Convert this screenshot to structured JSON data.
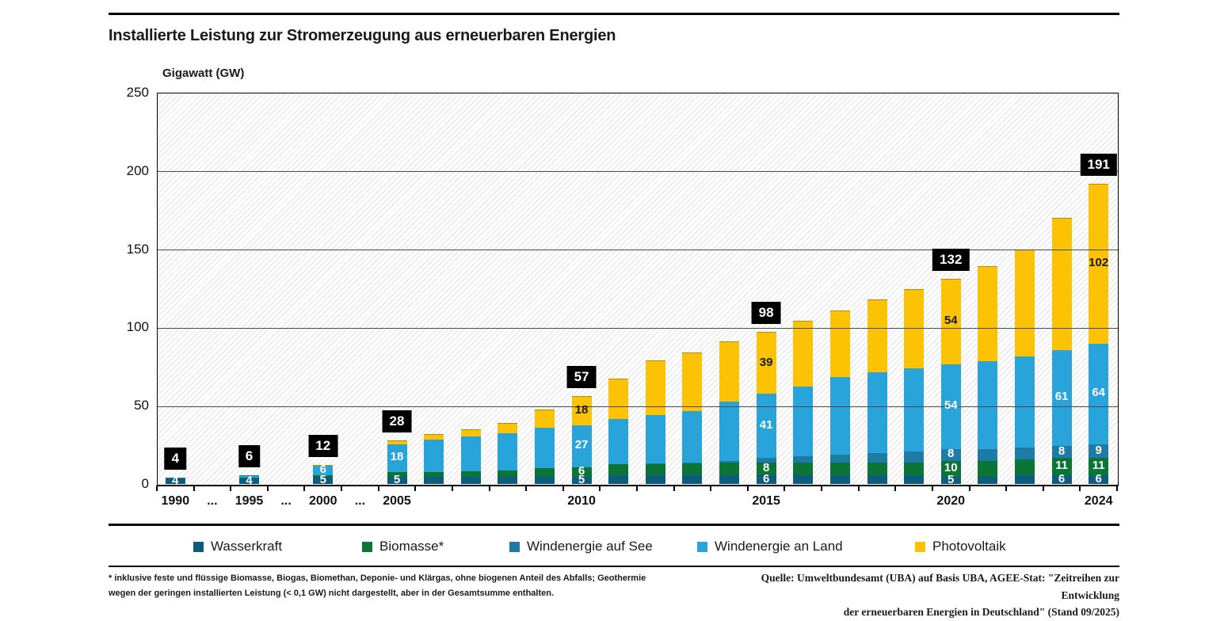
{
  "header": {
    "title": "Installierte Leistung zur Stromerzeugung aus erneuerbaren Energien"
  },
  "chart_data": {
    "type": "bar",
    "stacked": true,
    "title": "Installierte Leistung zur Stromerzeugung aus erneuerbaren Energien",
    "ylabel": "Gigawatt (GW)",
    "ylim": [
      0,
      250
    ],
    "yticks": [
      0,
      50,
      100,
      150,
      200,
      250
    ],
    "grid": "horizontal",
    "hatch_background": true,
    "x_slots": 26,
    "x_tick_labels": [
      {
        "slot": 0,
        "label": "1990"
      },
      {
        "slot": 1,
        "label": "..."
      },
      {
        "slot": 2,
        "label": "1995"
      },
      {
        "slot": 3,
        "label": "..."
      },
      {
        "slot": 4,
        "label": "2000"
      },
      {
        "slot": 5,
        "label": "..."
      },
      {
        "slot": 6,
        "label": "2005"
      },
      {
        "slot": 11,
        "label": "2010"
      },
      {
        "slot": 16,
        "label": "2015"
      },
      {
        "slot": 21,
        "label": "2020"
      },
      {
        "slot": 25,
        "label": "2024"
      }
    ],
    "series": [
      {
        "key": "wasserkraft",
        "name": "Wasserkraft",
        "color": "#0b5c7d",
        "label_color": "#ffffff"
      },
      {
        "key": "biomasse",
        "name": "Biomasse*",
        "color": "#0b7437",
        "label_color": "#ffffff"
      },
      {
        "key": "wind_see",
        "name": "Windenergie auf See",
        "color": "#1d7ba6",
        "label_color": "#ffffff"
      },
      {
        "key": "wind_land",
        "name": "Windenergie an Land",
        "color": "#29a4da",
        "label_color": "#ffffff"
      },
      {
        "key": "photovoltaik",
        "name": "Photovoltaik",
        "color": "#fcc305",
        "label_color": "#1a1a1a"
      }
    ],
    "bars": [
      {
        "year": "1990",
        "slot": 0,
        "values": [
          4,
          0.2,
          0,
          0.1,
          0
        ],
        "total_label": "4",
        "segment_labels": [
          "4",
          null,
          null,
          null,
          null
        ]
      },
      {
        "year": "1995",
        "slot": 2,
        "values": [
          4,
          0.6,
          0,
          1.1,
          0
        ],
        "total_label": "6",
        "segment_labels": [
          "4",
          null,
          null,
          null,
          null
        ]
      },
      {
        "year": "2000",
        "slot": 4,
        "values": [
          5,
          1,
          0,
          6,
          0.1
        ],
        "total_label": "12",
        "segment_labels": [
          "5",
          null,
          null,
          "6",
          null
        ]
      },
      {
        "year": "2005",
        "slot": 6,
        "values": [
          5,
          3,
          0,
          18,
          2
        ],
        "total_label": "28",
        "segment_labels": [
          "5",
          null,
          null,
          "18",
          null
        ]
      },
      {
        "year": "2006",
        "slot": 7,
        "values": [
          5,
          3.2,
          0,
          20.6,
          3
        ]
      },
      {
        "year": "2007",
        "slot": 8,
        "values": [
          5,
          3.7,
          0,
          22.2,
          4.2
        ]
      },
      {
        "year": "2008",
        "slot": 9,
        "values": [
          5,
          4.1,
          0,
          23.9,
          6.1
        ]
      },
      {
        "year": "2009",
        "slot": 10,
        "values": [
          5,
          5.4,
          0,
          26,
          11
        ]
      },
      {
        "year": "2010",
        "slot": 11,
        "values": [
          5,
          6,
          0.1,
          27,
          18
        ],
        "total_label": "57",
        "segment_labels": [
          "5",
          "6",
          null,
          "27",
          "18"
        ]
      },
      {
        "year": "2011",
        "slot": 12,
        "values": [
          6,
          7,
          0.2,
          29,
          25
        ]
      },
      {
        "year": "2012",
        "slot": 13,
        "values": [
          6,
          7.4,
          0.3,
          31,
          34
        ]
      },
      {
        "year": "2013",
        "slot": 14,
        "values": [
          6,
          7.6,
          0.5,
          33,
          37
        ]
      },
      {
        "year": "2014",
        "slot": 15,
        "values": [
          6,
          8,
          1,
          38,
          38
        ]
      },
      {
        "year": "2015",
        "slot": 16,
        "values": [
          6,
          8,
          3,
          41,
          39
        ],
        "total_label": "98",
        "segment_labels": [
          "6",
          "8",
          null,
          "41",
          "39"
        ]
      },
      {
        "year": "2016",
        "slot": 17,
        "values": [
          6,
          8,
          4,
          45,
          41
        ]
      },
      {
        "year": "2017",
        "slot": 18,
        "values": [
          6,
          8,
          5,
          50,
          42
        ]
      },
      {
        "year": "2018",
        "slot": 19,
        "values": [
          6,
          8,
          6,
          52,
          46
        ]
      },
      {
        "year": "2019",
        "slot": 20,
        "values": [
          6,
          8,
          7.5,
          53,
          50
        ]
      },
      {
        "year": "2020",
        "slot": 21,
        "values": [
          5,
          10,
          8,
          54,
          54
        ],
        "total_label": "132",
        "segment_labels": [
          "5",
          "10",
          "8",
          "54",
          "54"
        ]
      },
      {
        "year": "2021",
        "slot": 22,
        "values": [
          5,
          10,
          8,
          56,
          60
        ]
      },
      {
        "year": "2022",
        "slot": 23,
        "values": [
          6,
          10,
          8,
          58,
          68
        ]
      },
      {
        "year": "2023",
        "slot": 24,
        "values": [
          6,
          11,
          8,
          61,
          84
        ],
        "segment_labels": [
          "6",
          "11",
          "8",
          "61",
          null
        ]
      },
      {
        "year": "2024",
        "slot": 25,
        "values": [
          6,
          11,
          9,
          64,
          102
        ],
        "total_label": "191",
        "segment_labels": [
          "6",
          "11",
          "9",
          "64",
          "102"
        ]
      }
    ]
  },
  "footnote": {
    "line1": "* inklusive feste und flüssige Biomasse, Biogas, Biomethan, Deponie- und Klärgas, ohne biogenen Anteil des Abfalls; Geothermie",
    "line2": "wegen der geringen installierten Leistung (< 0,1 GW) nicht dargestellt, aber in der Gesamtsumme enthalten."
  },
  "source": {
    "line1": "Quelle: Umweltbundesamt (UBA) auf Basis UBA, AGEE-Stat: \"Zeitreihen zur Entwicklung",
    "line2": "der erneuerbaren Energien in Deutschland\" (Stand 09/2025)"
  }
}
